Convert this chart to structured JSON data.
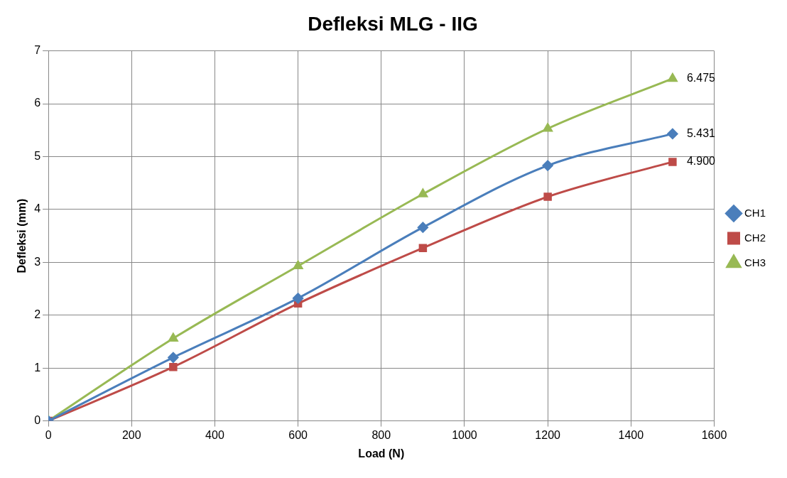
{
  "chart_data": {
    "type": "line",
    "title": "Defleksi MLG - IIG",
    "xlabel": "Load (N)",
    "ylabel": "Defleksi (mm)",
    "x": [
      0,
      300,
      600,
      900,
      1200,
      1500
    ],
    "series": [
      {
        "name": "CH1",
        "color": "#4a7ebb",
        "marker": "diamond",
        "values": [
          0,
          1.2,
          2.32,
          3.66,
          4.83,
          5.431
        ],
        "value_labels": [
          null,
          null,
          null,
          null,
          null,
          "5.431"
        ]
      },
      {
        "name": "CH2",
        "color": "#be4b48",
        "marker": "square",
        "values": [
          0,
          1.02,
          2.22,
          3.27,
          4.24,
          4.9
        ],
        "value_labels": [
          null,
          null,
          null,
          null,
          null,
          "4.900"
        ]
      },
      {
        "name": "CH3",
        "color": "#98b954",
        "marker": "triangle",
        "values": [
          0,
          1.56,
          2.93,
          4.29,
          5.53,
          6.475
        ],
        "value_labels": [
          null,
          null,
          null,
          null,
          null,
          "6.475"
        ]
      }
    ],
    "xlim": [
      0,
      1600
    ],
    "xticks": [
      0,
      200,
      400,
      600,
      800,
      1000,
      1200,
      1400,
      1600
    ],
    "ylim": [
      0,
      7
    ],
    "yticks": [
      0,
      1,
      2,
      3,
      4,
      5,
      6,
      7
    ],
    "grid": true,
    "legend": "right",
    "line_style": "solid"
  }
}
